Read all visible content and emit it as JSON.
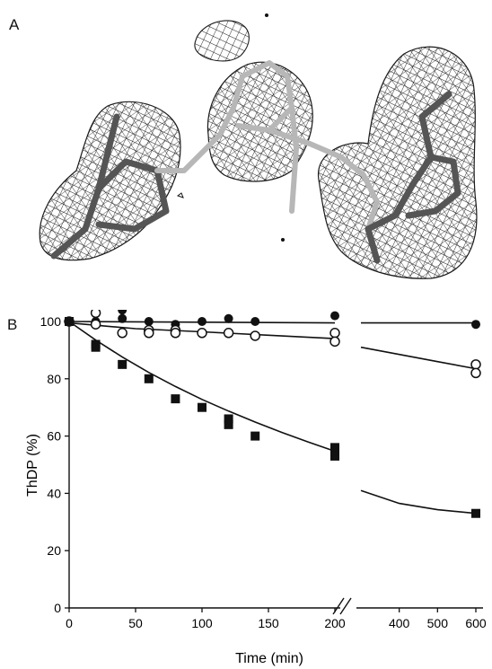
{
  "panels": {
    "a_label": "A",
    "b_label": "B"
  },
  "colors": {
    "line": "#111111",
    "mesh": "#1a1a1a",
    "stick_light": "#b7b7b7",
    "stick_dark": "#555555",
    "filled": "#111111",
    "open": "#ffffff"
  },
  "chart_data": {
    "type": "scatter",
    "title": "",
    "xlabel": "Time (min)",
    "ylabel": "ThDP (%)",
    "xlim": [
      0,
      600
    ],
    "ylim": [
      0,
      100
    ],
    "x_axis_break": [
      200,
      300
    ],
    "xticks_left": [
      "0",
      "50",
      "100",
      "150",
      "200"
    ],
    "xticks_right": [
      "400",
      "500",
      "600"
    ],
    "yticks": [
      "0",
      "20",
      "40",
      "60",
      "80",
      "100"
    ],
    "grid": false,
    "series": [
      {
        "marker": "filled-circle",
        "points": [
          [
            0,
            100
          ],
          [
            20,
            100
          ],
          [
            40,
            104
          ],
          [
            40,
            101
          ],
          [
            60,
            100
          ],
          [
            80,
            99
          ],
          [
            100,
            100
          ],
          [
            120,
            101
          ],
          [
            140,
            100
          ],
          [
            200,
            102
          ],
          [
            600,
            99
          ]
        ],
        "fit": [
          [
            0,
            100
          ],
          [
            200,
            99.5
          ],
          [
            300,
            99.5
          ],
          [
            600,
            99.5
          ]
        ]
      },
      {
        "marker": "open-circle",
        "points": [
          [
            0,
            100
          ],
          [
            20,
            103
          ],
          [
            20,
            99
          ],
          [
            40,
            96
          ],
          [
            60,
            97
          ],
          [
            60,
            96
          ],
          [
            80,
            97
          ],
          [
            80,
            96
          ],
          [
            100,
            96
          ],
          [
            120,
            96
          ],
          [
            140,
            95
          ],
          [
            200,
            96
          ],
          [
            200,
            93
          ],
          [
            600,
            85
          ],
          [
            600,
            82
          ]
        ],
        "fit": [
          [
            0,
            99.5
          ],
          [
            50,
            97.5
          ],
          [
            100,
            96.4
          ],
          [
            150,
            95.2
          ],
          [
            200,
            94.0
          ],
          [
            300,
            91
          ],
          [
            400,
            88.5
          ],
          [
            500,
            86
          ],
          [
            600,
            83.5
          ]
        ]
      },
      {
        "marker": "filled-square",
        "points": [
          [
            0,
            100
          ],
          [
            20,
            92
          ],
          [
            20,
            91
          ],
          [
            40,
            85
          ],
          [
            60,
            80
          ],
          [
            80,
            73
          ],
          [
            100,
            70
          ],
          [
            120,
            66
          ],
          [
            120,
            64
          ],
          [
            140,
            60
          ],
          [
            200,
            56
          ],
          [
            200,
            53
          ],
          [
            600,
            33
          ]
        ],
        "fit": [
          [
            0,
            100
          ],
          [
            20,
            93.5
          ],
          [
            40,
            87.6
          ],
          [
            60,
            82.2
          ],
          [
            80,
            77.3
          ],
          [
            100,
            72.8
          ],
          [
            120,
            68.7
          ],
          [
            140,
            64.9
          ],
          [
            160,
            61.3
          ],
          [
            180,
            57.9
          ],
          [
            200,
            54.7
          ],
          [
            300,
            41
          ],
          [
            400,
            36.5
          ],
          [
            500,
            34.3
          ],
          [
            600,
            33
          ]
        ]
      }
    ]
  }
}
